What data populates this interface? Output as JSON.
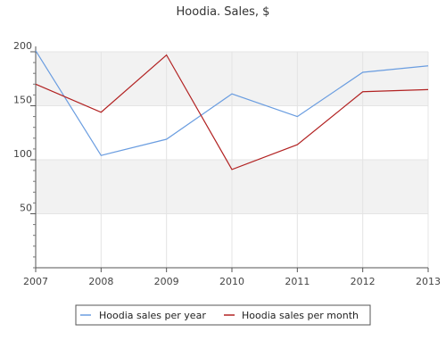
{
  "chart_data": {
    "type": "line",
    "title": "Hoodia. Sales, $",
    "xlabel": "",
    "ylabel": "",
    "categories": [
      "2007",
      "2008",
      "2009",
      "2010",
      "2011",
      "2012",
      "2013"
    ],
    "y_ticks": [
      50,
      100,
      150,
      200
    ],
    "ylim": [
      0,
      200
    ],
    "grid": true,
    "legend_position": "bottom",
    "series": [
      {
        "name": "Hoodia sales per year",
        "color": "#6a9de0",
        "values": [
          201,
          104,
          119,
          161,
          140,
          181,
          187
        ]
      },
      {
        "name": "Hoodia sales per month",
        "color": "#b22222",
        "values": [
          170,
          144,
          197,
          91,
          114,
          163,
          165
        ]
      }
    ]
  }
}
